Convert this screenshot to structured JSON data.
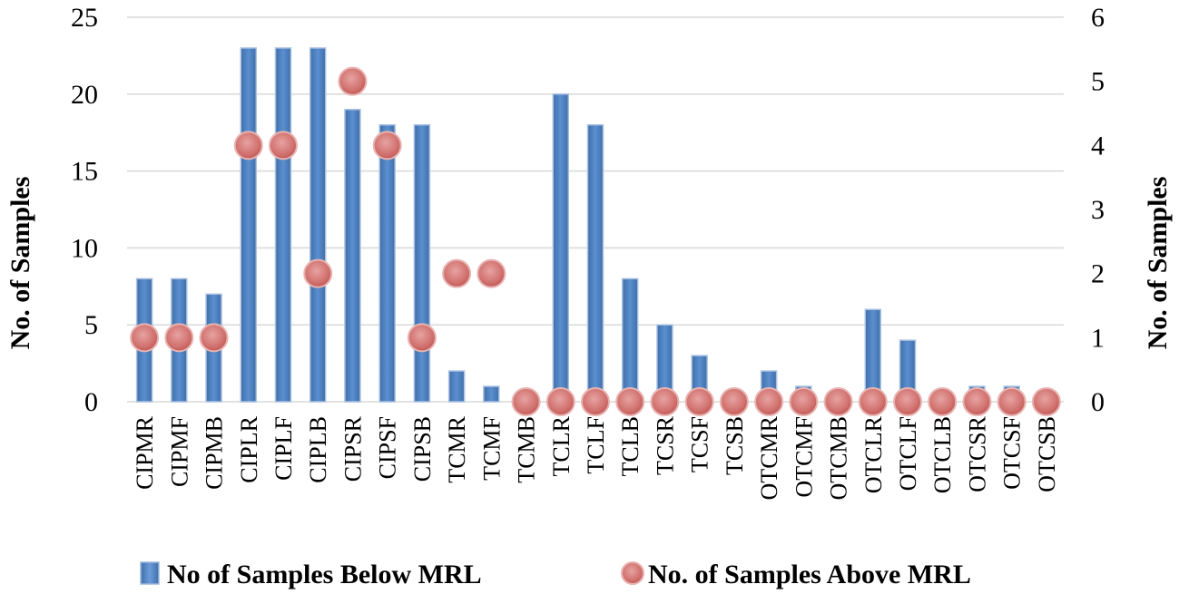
{
  "chart_data": {
    "type": "bar",
    "title": "",
    "xlabel": "",
    "ylabel": "No. of Samples",
    "y2label": "No. of Samples",
    "ylim": [
      0,
      25
    ],
    "y2lim": [
      0,
      6
    ],
    "yticks": [
      0,
      5,
      10,
      15,
      20,
      25
    ],
    "y2ticks": [
      0,
      1,
      2,
      3,
      4,
      5,
      6
    ],
    "grid": true,
    "legend_position": "bottom",
    "categories": [
      "CIPMR",
      "CIPMF",
      "CIPMB",
      "CIPLR",
      "CIPLF",
      "CIPLB",
      "CIPSR",
      "CIPSF",
      "CIPSB",
      "TCMR",
      "TCMF",
      "TCMB",
      "TCLR",
      "TCLF",
      "TCLB",
      "TCSR",
      "TCSF",
      "TCSB",
      "OTCMR",
      "OTCMF",
      "OTCMB",
      "OTCLR",
      "OTCLF",
      "OTCLB",
      "OTCSR",
      "OTCSF",
      "OTCSB"
    ],
    "series": [
      {
        "name": "No of Samples Below MRL",
        "kind": "bar",
        "axis": "left",
        "color": "#4f81bd",
        "values": [
          8,
          8,
          7,
          23,
          23,
          23,
          19,
          18,
          18,
          2,
          1,
          0,
          20,
          18,
          8,
          5,
          3,
          0,
          2,
          1,
          0,
          6,
          4,
          0,
          1,
          1,
          0
        ]
      },
      {
        "name": "No. of Samples Above MRL",
        "kind": "marker",
        "axis": "right",
        "color": "#c0504d",
        "values": [
          1,
          1,
          1,
          4,
          4,
          2,
          5,
          4,
          1,
          2,
          2,
          0,
          0,
          0,
          0,
          0,
          0,
          0,
          0,
          0,
          0,
          0,
          0,
          0,
          0,
          0,
          0
        ]
      }
    ]
  }
}
